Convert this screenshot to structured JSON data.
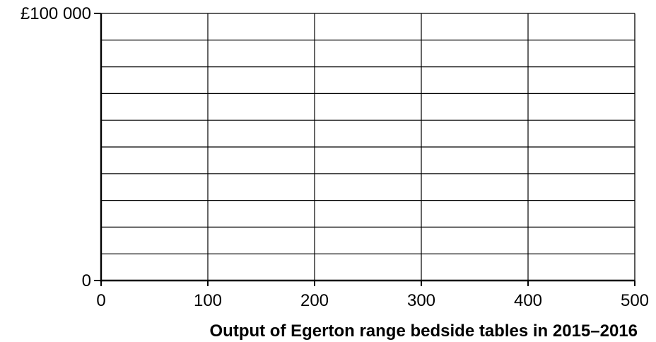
{
  "chart_data": {
    "type": "line",
    "title": "",
    "xlabel": "Output of Egerton range bedside tables in 2015–2016",
    "ylabel": "",
    "xlim": [
      0,
      500
    ],
    "ylim": [
      0,
      100000
    ],
    "x_ticks": [
      0,
      100,
      200,
      300,
      400,
      500
    ],
    "x_tick_labels": [
      "0",
      "100",
      "200",
      "300",
      "400",
      "500"
    ],
    "y_ticks": [
      0,
      100000
    ],
    "y_tick_labels": [
      "0",
      "£100 000"
    ],
    "x_grid_step": 100,
    "y_grid_step": 10000,
    "grid": true,
    "series": []
  }
}
